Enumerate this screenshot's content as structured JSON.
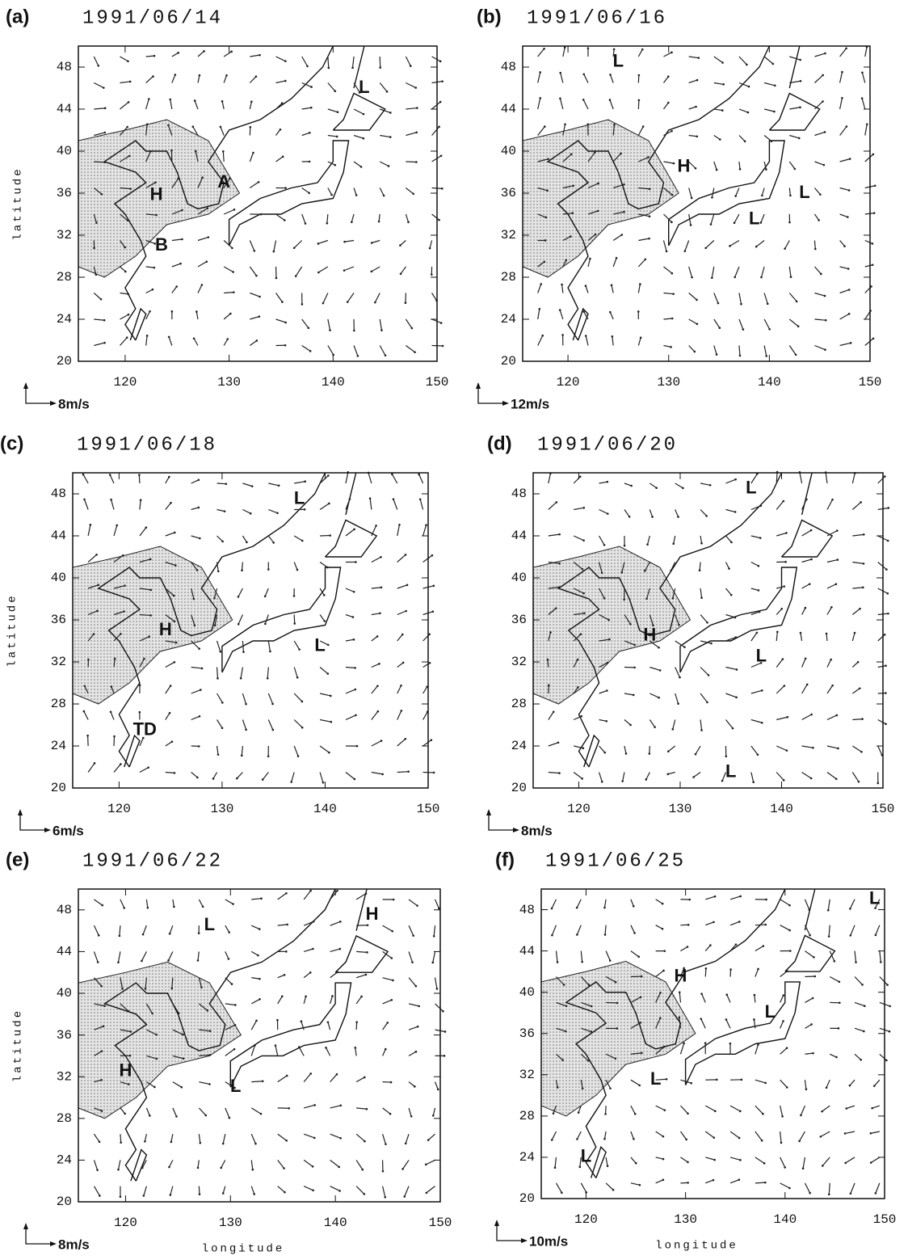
{
  "axes": {
    "xlim": [
      115.5,
      150
    ],
    "ylim": [
      20,
      50
    ],
    "xticks": [
      120,
      130,
      140,
      150
    ],
    "yticks": [
      20,
      24,
      28,
      32,
      36,
      40,
      44,
      48
    ],
    "x_label": "longitude",
    "y_label": "latitude"
  },
  "panels": [
    {
      "label": "(a)",
      "date": "1991/06/14",
      "scale": "8m/s",
      "annotations": [
        {
          "text": "H",
          "lon": 123,
          "lat": 35.8
        },
        {
          "text": "A",
          "lon": 129.5,
          "lat": 37
        },
        {
          "text": "B",
          "lon": 123.5,
          "lat": 31
        },
        {
          "text": "L",
          "lon": 143,
          "lat": 46
        }
      ]
    },
    {
      "label": "(b)",
      "date": "1991/06/16",
      "scale": "12m/s",
      "annotations": [
        {
          "text": "L",
          "lon": 125,
          "lat": 48.5
        },
        {
          "text": "H",
          "lon": 131.5,
          "lat": 38.5
        },
        {
          "text": "L",
          "lon": 143.5,
          "lat": 36
        },
        {
          "text": "L",
          "lon": 138.5,
          "lat": 33.5
        }
      ]
    },
    {
      "label": "(c)",
      "date": "1991/06/18",
      "scale": "6m/s",
      "annotations": [
        {
          "text": "L",
          "lon": 137.5,
          "lat": 47.5
        },
        {
          "text": "H",
          "lon": 124.5,
          "lat": 35
        },
        {
          "text": "L",
          "lon": 139.5,
          "lat": 33.5
        },
        {
          "text": "TD",
          "lon": 122.5,
          "lat": 25.5
        }
      ]
    },
    {
      "label": "(d)",
      "date": "1991/06/20",
      "scale": "8m/s",
      "annotations": [
        {
          "text": "L",
          "lon": 137,
          "lat": 48.5
        },
        {
          "text": "H",
          "lon": 127,
          "lat": 34.5
        },
        {
          "text": "L",
          "lon": 138,
          "lat": 32.5
        },
        {
          "text": "L",
          "lon": 135,
          "lat": 21.5
        }
      ]
    },
    {
      "label": "(e)",
      "date": "1991/06/22",
      "scale": "8m/s",
      "annotations": [
        {
          "text": "L",
          "lon": 128,
          "lat": 46.5
        },
        {
          "text": "H",
          "lon": 143.5,
          "lat": 47.5
        },
        {
          "text": "H",
          "lon": 120,
          "lat": 32.5
        },
        {
          "text": "L",
          "lon": 130.5,
          "lat": 31
        }
      ]
    },
    {
      "label": "(f)",
      "date": "1991/06/25",
      "scale": "10m/s",
      "annotations": [
        {
          "text": "L",
          "lon": 149,
          "lat": 49
        },
        {
          "text": "H",
          "lon": 129.5,
          "lat": 41.5
        },
        {
          "text": "L",
          "lon": 138.5,
          "lat": 38
        },
        {
          "text": "L",
          "lon": 127,
          "lat": 31.5
        },
        {
          "text": "L",
          "lon": 120,
          "lat": 24
        }
      ]
    }
  ]
}
